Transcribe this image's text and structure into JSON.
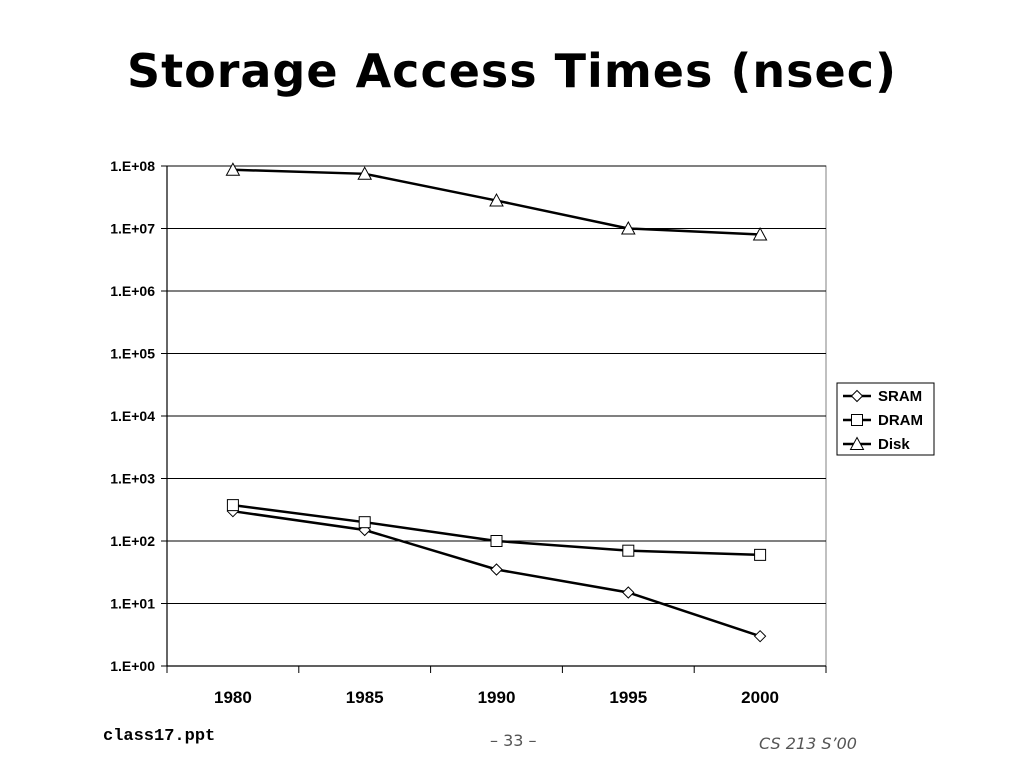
{
  "slide": {
    "title": "Storage Access Times (nsec)",
    "footer_left": "class17.ppt",
    "footer_center": "– 33 –",
    "footer_right": "CS 213 S’00"
  },
  "chart_data": {
    "type": "line",
    "title": "",
    "xlabel": "",
    "ylabel": "",
    "y_scale": "log",
    "categories": [
      "1980",
      "1985",
      "1990",
      "1995",
      "2000"
    ],
    "y_ticks": [
      "1.E+00",
      "1.E+01",
      "1.E+02",
      "1.E+03",
      "1.E+04",
      "1.E+05",
      "1.E+06",
      "1.E+07",
      "1.E+08"
    ],
    "ylim": [
      1,
      100000000
    ],
    "grid": true,
    "legend_position": "right",
    "series": [
      {
        "name": "SRAM",
        "marker": "diamond",
        "values": [
          300,
          150,
          35,
          15,
          3
        ]
      },
      {
        "name": "DRAM",
        "marker": "square",
        "values": [
          375,
          200,
          100,
          70,
          60
        ]
      },
      {
        "name": "Disk",
        "marker": "triangle",
        "values": [
          87000000,
          75000000,
          28000000,
          10000000,
          8000000
        ]
      }
    ]
  }
}
